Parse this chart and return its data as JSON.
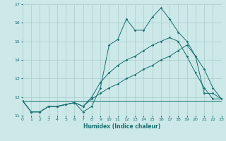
{
  "xlabel": "Humidex (Indice chaleur)",
  "background_color": "#cce8e8",
  "grid_color": "#aacccc",
  "line_color": "#1a7070",
  "x_min": 0,
  "x_max": 23,
  "y_min": 11,
  "y_max": 17,
  "series1_x": [
    0,
    1,
    2,
    3,
    4,
    5,
    6,
    7,
    8,
    9,
    10,
    11,
    12,
    13,
    14,
    15,
    16,
    17,
    18,
    19,
    20,
    21,
    22,
    23
  ],
  "series1_y": [
    11.8,
    11.2,
    11.2,
    11.5,
    11.5,
    11.6,
    11.7,
    11.2,
    11.5,
    12.5,
    14.8,
    15.1,
    16.2,
    15.6,
    15.6,
    16.3,
    16.8,
    16.2,
    15.5,
    15.0,
    14.2,
    12.2,
    12.2,
    11.9
  ],
  "series2_x": [
    0,
    1,
    2,
    3,
    4,
    5,
    6,
    7,
    8,
    9,
    10,
    11,
    12,
    13,
    14,
    15,
    16,
    17,
    18,
    19,
    20,
    21,
    22,
    23
  ],
  "series2_y": [
    11.8,
    11.2,
    11.2,
    11.5,
    11.5,
    11.6,
    11.7,
    11.5,
    12.0,
    12.8,
    13.3,
    13.7,
    14.0,
    14.2,
    14.5,
    14.8,
    15.0,
    15.2,
    15.0,
    14.2,
    13.3,
    12.5,
    11.9,
    11.9
  ],
  "series3_x": [
    0,
    1,
    2,
    3,
    4,
    5,
    6,
    7,
    8,
    9,
    10,
    11,
    12,
    13,
    14,
    15,
    16,
    17,
    18,
    19,
    20,
    21,
    22,
    23
  ],
  "series3_y": [
    11.8,
    11.2,
    11.2,
    11.5,
    11.5,
    11.6,
    11.7,
    11.5,
    11.9,
    12.2,
    12.5,
    12.7,
    13.0,
    13.2,
    13.5,
    13.7,
    14.0,
    14.2,
    14.5,
    14.8,
    14.2,
    13.5,
    12.5,
    11.9
  ],
  "series4_x": [
    0,
    1,
    2,
    3,
    4,
    5,
    6,
    7,
    8,
    9,
    10,
    11,
    12,
    13,
    14,
    15,
    16,
    17,
    18,
    19,
    20,
    21,
    22,
    23
  ],
  "series4_y": [
    11.8,
    11.8,
    11.8,
    11.8,
    11.8,
    11.8,
    11.8,
    11.8,
    11.8,
    11.8,
    11.8,
    11.8,
    11.8,
    11.8,
    11.8,
    11.8,
    11.8,
    11.8,
    11.8,
    11.8,
    11.8,
    11.8,
    11.8,
    11.8
  ]
}
